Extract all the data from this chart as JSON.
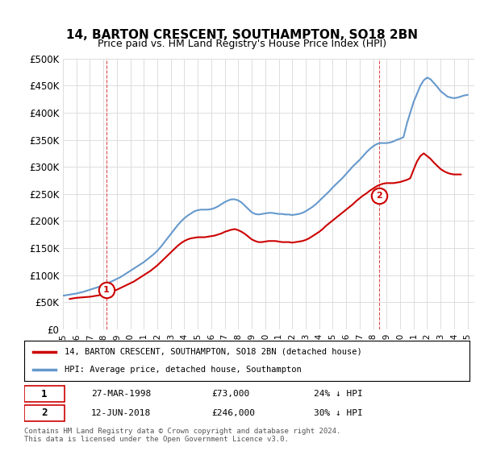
{
  "title": "14, BARTON CRESCENT, SOUTHAMPTON, SO18 2BN",
  "subtitle": "Price paid vs. HM Land Registry's House Price Index (HPI)",
  "background_color": "#ffffff",
  "grid_color": "#dddddd",
  "ylabel_ticks": [
    "£0",
    "£50K",
    "£100K",
    "£150K",
    "£200K",
    "£250K",
    "£300K",
    "£350K",
    "£400K",
    "£450K",
    "£500K"
  ],
  "ytick_values": [
    0,
    50000,
    100000,
    150000,
    200000,
    250000,
    300000,
    350000,
    400000,
    450000,
    500000
  ],
  "ylim": [
    0,
    500000
  ],
  "xlim_start": 1995.0,
  "xlim_end": 2025.5,
  "legend_line1": "14, BARTON CRESCENT, SOUTHAMPTON, SO18 2BN (detached house)",
  "legend_line2": "HPI: Average price, detached house, Southampton",
  "sale1_date": "27-MAR-1998",
  "sale1_price": 73000,
  "sale1_label": "1",
  "sale1_x": 1998.23,
  "sale2_date": "12-JUN-2018",
  "sale2_price": 246000,
  "sale2_label": "2",
  "sale2_x": 2018.45,
  "footer": "Contains HM Land Registry data © Crown copyright and database right 2024.\nThis data is licensed under the Open Government Licence v3.0.",
  "price_color": "#cc0000",
  "hpi_color": "#6699cc",
  "hpi_x": [
    1995.0,
    1995.25,
    1995.5,
    1995.75,
    1996.0,
    1996.25,
    1996.5,
    1996.75,
    1997.0,
    1997.25,
    1997.5,
    1997.75,
    1998.0,
    1998.25,
    1998.5,
    1998.75,
    1999.0,
    1999.25,
    1999.5,
    1999.75,
    2000.0,
    2000.25,
    2000.5,
    2000.75,
    2001.0,
    2001.25,
    2001.5,
    2001.75,
    2002.0,
    2002.25,
    2002.5,
    2002.75,
    2003.0,
    2003.25,
    2003.5,
    2003.75,
    2004.0,
    2004.25,
    2004.5,
    2004.75,
    2005.0,
    2005.25,
    2005.5,
    2005.75,
    2006.0,
    2006.25,
    2006.5,
    2006.75,
    2007.0,
    2007.25,
    2007.5,
    2007.75,
    2008.0,
    2008.25,
    2008.5,
    2008.75,
    2009.0,
    2009.25,
    2009.5,
    2009.75,
    2010.0,
    2010.25,
    2010.5,
    2010.75,
    2011.0,
    2011.25,
    2011.5,
    2011.75,
    2012.0,
    2012.25,
    2012.5,
    2012.75,
    2013.0,
    2013.25,
    2013.5,
    2013.75,
    2014.0,
    2014.25,
    2014.5,
    2014.75,
    2015.0,
    2015.25,
    2015.5,
    2015.75,
    2016.0,
    2016.25,
    2016.5,
    2016.75,
    2017.0,
    2017.25,
    2017.5,
    2017.75,
    2018.0,
    2018.25,
    2018.5,
    2018.75,
    2019.0,
    2019.25,
    2019.5,
    2019.75,
    2020.0,
    2020.25,
    2020.5,
    2020.75,
    2021.0,
    2021.25,
    2021.5,
    2021.75,
    2022.0,
    2022.25,
    2022.5,
    2022.75,
    2023.0,
    2023.25,
    2023.5,
    2023.75,
    2024.0,
    2024.25,
    2024.5,
    2024.75,
    2025.0
  ],
  "hpi_y": [
    62000,
    63000,
    64000,
    65000,
    66000,
    67500,
    69000,
    71000,
    73000,
    75000,
    77000,
    79000,
    82000,
    85000,
    87000,
    90000,
    93000,
    96000,
    100000,
    104000,
    108000,
    112000,
    116000,
    120000,
    124000,
    129000,
    134000,
    139000,
    145000,
    152000,
    160000,
    168000,
    176000,
    184000,
    192000,
    199000,
    205000,
    210000,
    214000,
    218000,
    220000,
    221000,
    221000,
    221000,
    222000,
    224000,
    227000,
    231000,
    235000,
    238000,
    240000,
    240000,
    238000,
    234000,
    228000,
    222000,
    216000,
    213000,
    212000,
    213000,
    214000,
    215000,
    215000,
    214000,
    213000,
    213000,
    212000,
    212000,
    211000,
    212000,
    213000,
    215000,
    218000,
    222000,
    226000,
    231000,
    237000,
    243000,
    249000,
    255000,
    262000,
    268000,
    274000,
    280000,
    287000,
    294000,
    301000,
    307000,
    313000,
    320000,
    327000,
    333000,
    338000,
    342000,
    344000,
    344000,
    344000,
    345000,
    347000,
    350000,
    352000,
    355000,
    380000,
    400000,
    420000,
    435000,
    450000,
    460000,
    465000,
    462000,
    455000,
    448000,
    440000,
    435000,
    430000,
    428000,
    427000,
    428000,
    430000,
    432000,
    433000
  ],
  "price_x": [
    1995.5,
    1995.75,
    1996.0,
    1996.25,
    1996.5,
    1996.75,
    1997.0,
    1997.25,
    1997.5,
    1997.75,
    1998.0,
    1998.25,
    1998.5,
    1998.75,
    1999.0,
    1999.25,
    1999.5,
    1999.75,
    2000.0,
    2000.25,
    2000.5,
    2000.75,
    2001.0,
    2001.25,
    2001.5,
    2001.75,
    2002.0,
    2002.25,
    2002.5,
    2002.75,
    2003.0,
    2003.25,
    2003.5,
    2003.75,
    2004.0,
    2004.25,
    2004.5,
    2004.75,
    2005.0,
    2005.25,
    2005.5,
    2005.75,
    2006.0,
    2006.25,
    2006.5,
    2006.75,
    2007.0,
    2007.25,
    2007.5,
    2007.75,
    2008.0,
    2008.25,
    2008.5,
    2008.75,
    2009.0,
    2009.25,
    2009.5,
    2009.75,
    2010.0,
    2010.25,
    2010.5,
    2010.75,
    2011.0,
    2011.25,
    2011.5,
    2011.75,
    2012.0,
    2012.25,
    2012.5,
    2012.75,
    2013.0,
    2013.25,
    2013.5,
    2013.75,
    2014.0,
    2014.25,
    2014.5,
    2014.75,
    2015.0,
    2015.25,
    2015.5,
    2015.75,
    2016.0,
    2016.25,
    2016.5,
    2016.75,
    2017.0,
    2017.25,
    2017.5,
    2017.75,
    2018.0,
    2018.25,
    2018.5,
    2018.75,
    2019.0,
    2019.25,
    2019.5,
    2019.75,
    2020.0,
    2020.25,
    2020.5,
    2020.75,
    2021.0,
    2021.25,
    2021.5,
    2021.75,
    2022.0,
    2022.25,
    2022.5,
    2022.75,
    2023.0,
    2023.25,
    2023.5,
    2023.75,
    2024.0,
    2024.5
  ],
  "price_y": [
    56000,
    57000,
    58000,
    58500,
    59000,
    59500,
    60000,
    61000,
    62000,
    63000,
    65000,
    67000,
    69000,
    71000,
    73000,
    76000,
    79000,
    82000,
    85000,
    88000,
    92000,
    96000,
    100000,
    104000,
    108000,
    113000,
    118000,
    124000,
    130000,
    136000,
    142000,
    148000,
    154000,
    159000,
    163000,
    166000,
    168000,
    169000,
    170000,
    170000,
    170000,
    171000,
    172000,
    173000,
    175000,
    177000,
    180000,
    182000,
    184000,
    185000,
    183000,
    180000,
    176000,
    171000,
    166000,
    163000,
    161000,
    161000,
    162000,
    163000,
    163000,
    163000,
    162000,
    161000,
    161000,
    161000,
    160000,
    161000,
    162000,
    163000,
    165000,
    168000,
    172000,
    176000,
    180000,
    185000,
    191000,
    196000,
    201000,
    206000,
    211000,
    216000,
    221000,
    226000,
    231000,
    237000,
    242000,
    247000,
    251000,
    256000,
    260000,
    264000,
    267000,
    269000,
    270000,
    270000,
    270000,
    271000,
    272000,
    274000,
    276000,
    279000,
    295000,
    310000,
    320000,
    325000,
    320000,
    315000,
    308000,
    302000,
    296000,
    292000,
    289000,
    287000,
    286000,
    286000
  ]
}
